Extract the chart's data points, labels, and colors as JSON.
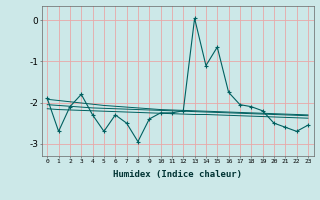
{
  "xlabel": "Humidex (Indice chaleur)",
  "bg_color": "#cce8e8",
  "grid_color": "#e8a8a8",
  "line_color": "#006060",
  "x_data": [
    0,
    1,
    2,
    3,
    4,
    5,
    6,
    7,
    8,
    9,
    10,
    11,
    12,
    13,
    14,
    15,
    16,
    17,
    18,
    19,
    20,
    21,
    22,
    23
  ],
  "y_main": [
    -1.9,
    -2.7,
    -2.1,
    -1.8,
    -2.3,
    -2.7,
    -2.3,
    -2.5,
    -2.95,
    -2.4,
    -2.25,
    -2.25,
    -2.2,
    0.05,
    -1.1,
    -0.65,
    -1.75,
    -2.05,
    -2.1,
    -2.2,
    -2.5,
    -2.6,
    -2.7,
    -2.55
  ],
  "y_trend1": [
    -1.92,
    -1.95,
    -1.98,
    -2.01,
    -2.04,
    -2.07,
    -2.09,
    -2.11,
    -2.13,
    -2.15,
    -2.17,
    -2.18,
    -2.19,
    -2.2,
    -2.21,
    -2.22,
    -2.23,
    -2.24,
    -2.25,
    -2.26,
    -2.27,
    -2.28,
    -2.29,
    -2.3
  ],
  "y_trend2": [
    -2.05,
    -2.07,
    -2.09,
    -2.11,
    -2.13,
    -2.14,
    -2.15,
    -2.16,
    -2.17,
    -2.18,
    -2.19,
    -2.2,
    -2.21,
    -2.22,
    -2.23,
    -2.24,
    -2.25,
    -2.26,
    -2.27,
    -2.28,
    -2.29,
    -2.3,
    -2.31,
    -2.32
  ],
  "y_trend3": [
    -2.15,
    -2.17,
    -2.18,
    -2.19,
    -2.2,
    -2.21,
    -2.22,
    -2.23,
    -2.24,
    -2.25,
    -2.26,
    -2.27,
    -2.28,
    -2.29,
    -2.29,
    -2.3,
    -2.31,
    -2.32,
    -2.33,
    -2.34,
    -2.35,
    -2.36,
    -2.37,
    -2.38
  ],
  "ylim": [
    -3.3,
    0.35
  ],
  "yticks": [
    0,
    -1,
    -2,
    -3
  ],
  "xticks": [
    0,
    1,
    2,
    3,
    4,
    5,
    6,
    7,
    8,
    9,
    10,
    11,
    12,
    13,
    14,
    15,
    16,
    17,
    18,
    19,
    20,
    21,
    22,
    23
  ]
}
